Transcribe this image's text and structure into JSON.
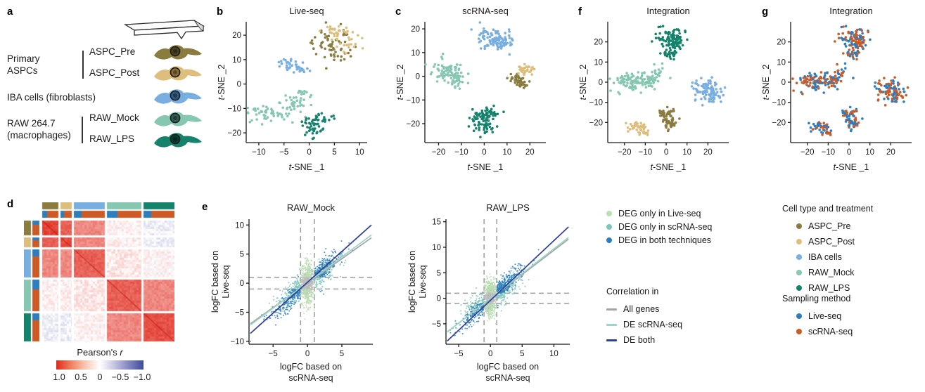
{
  "panels": {
    "a": "a",
    "b": "b",
    "c": "c",
    "d": "d",
    "e": "e",
    "f": "f",
    "g": "g"
  },
  "panel_a": {
    "groups": [
      {
        "line1": "Primary",
        "line2": "ASPCs"
      },
      {
        "line1": "IBA cells (fibroblasts)",
        "line2": ""
      },
      {
        "line1": "RAW 264.7",
        "line2": "(macrophages)"
      }
    ],
    "cells": [
      {
        "label": "ASPC_Pre",
        "body": "#8a7c3f",
        "nucleus": "#4a421f"
      },
      {
        "label": "ASPC_Post",
        "body": "#ddbe7d",
        "nucleus": "#8a6f35"
      },
      {
        "label": "IBA",
        "body": "#79afe0",
        "nucleus": "#2f5a86"
      },
      {
        "label": "RAW_Mock",
        "body": "#86c7b1",
        "nucleus": "#2f5f54"
      },
      {
        "label": "RAW_LPS",
        "body": "#15836c",
        "nucleus": "#0a3c33"
      }
    ],
    "probe_icon": "afm-cantilever-icon"
  },
  "legends": {
    "deg": {
      "items": [
        {
          "label": "DEG only in Live-seq",
          "color": "#b9dfb2"
        },
        {
          "label": "DEG only in scRNA-seq",
          "color": "#79c6bb"
        },
        {
          "label": "DEG in both techniques",
          "color": "#2e7ebd"
        }
      ]
    },
    "corr": {
      "title": "Correlation in",
      "items": [
        {
          "label": "All genes",
          "color": "#a5a5a5"
        },
        {
          "label": "DE scRNA-seq",
          "color": "#9ad5cb"
        },
        {
          "label": "DE both",
          "color": "#2e3f97"
        }
      ]
    },
    "cell": {
      "title": "Cell type and treatment",
      "items": [
        {
          "label": "ASPC_Pre",
          "color": "#8a7c3f"
        },
        {
          "label": "ASPC_Post",
          "color": "#ddbe7d"
        },
        {
          "label": "IBA cells",
          "color": "#79afe0"
        },
        {
          "label": "RAW_Mock",
          "color": "#86c7b1"
        },
        {
          "label": "RAW_LPS",
          "color": "#15836c"
        }
      ]
    },
    "sampling": {
      "title": "Sampling method",
      "items": [
        {
          "label": "Live-seq",
          "color": "#2e7ebd"
        },
        {
          "label": "scRNA-seq",
          "color": "#cc5a27"
        }
      ]
    }
  },
  "colorbar": {
    "title": "Pearson's",
    "title_italic": "r",
    "ticks": [
      "1.0",
      "0.5",
      "0",
      "−0.5",
      "−1.0"
    ]
  },
  "chart_data": [
    {
      "panel": "b",
      "type": "scatter",
      "variant": "tsne",
      "title": "Live-seq",
      "xlabel": "t-SNE _1",
      "ylabel": "t-SNE _2",
      "xlim": [
        -12.5,
        11.5
      ],
      "ylim": [
        -24,
        25.5
      ],
      "xticks": [
        -10,
        -5,
        0,
        5,
        10
      ],
      "yticks": [
        -20,
        -10,
        0,
        10,
        20
      ],
      "series": [
        {
          "name": "ASPC_Pre",
          "color": "#8a7c3f",
          "blobs": [
            [
              4,
              16.5,
              1.9,
              2.6,
              46
            ],
            [
              5.5,
              11.5,
              1.3,
              1.4,
              14
            ]
          ]
        },
        {
          "name": "ASPC_Post",
          "color": "#ddbe7d",
          "blobs": [
            [
              6,
              20.5,
              1.6,
              1.3,
              26
            ],
            [
              8,
              16.5,
              1.1,
              1.6,
              14
            ],
            [
              4.5,
              22.5,
              0.9,
              0.7,
              8
            ]
          ]
        },
        {
          "name": "IBA cells",
          "color": "#79afe0",
          "blobs": [
            [
              -4,
              8.2,
              1.6,
              1.0,
              26
            ],
            [
              -1.5,
              5.8,
              1.2,
              0.8,
              14
            ]
          ]
        },
        {
          "name": "RAW_Mock",
          "color": "#86c7b1",
          "blobs": [
            [
              -7,
              -12,
              2.6,
              1.9,
              56
            ],
            [
              -2.5,
              -7.5,
              1.6,
              1.9,
              30
            ],
            [
              -1,
              -4.5,
              0.8,
              0.8,
              8
            ]
          ]
        },
        {
          "name": "RAW_LPS",
          "color": "#15836c",
          "blobs": [
            [
              0.8,
              -16.5,
              1.2,
              2.1,
              36
            ],
            [
              2.8,
              -13.8,
              1.5,
              0.7,
              12
            ],
            [
              0.6,
              -19.8,
              1.1,
              0.7,
              10
            ]
          ]
        }
      ]
    },
    {
      "panel": "c",
      "type": "scatter",
      "variant": "tsne",
      "title": "scRNA-seq",
      "xlabel": "t-SNE _1",
      "ylabel": "t-SNE _2",
      "xlim": [
        -26,
        27
      ],
      "ylim": [
        -28,
        23
      ],
      "xticks": [
        -20,
        -10,
        0,
        10,
        20
      ],
      "yticks": [
        -20,
        -10,
        0,
        10,
        20
      ],
      "series": [
        {
          "name": "ASPC_Pre",
          "color": "#8a7c3f",
          "blobs": [
            [
              14.5,
              -1,
              1.8,
              1.2,
              26
            ],
            [
              16.5,
              -3.2,
              1.4,
              0.9,
              18
            ]
          ]
        },
        {
          "name": "ASPC_Post",
          "color": "#ddbe7d",
          "blobs": [
            [
              18,
              2.6,
              2.0,
              1.0,
              36
            ]
          ]
        },
        {
          "name": "IBA cells",
          "color": "#79afe0",
          "blobs": [
            [
              3,
              16.5,
              3.4,
              2.0,
              70
            ],
            [
              8.5,
              14,
              2.4,
              1.6,
              40
            ]
          ]
        },
        {
          "name": "RAW_Mock",
          "color": "#86c7b1",
          "blobs": [
            [
              -17,
              2.5,
              3.0,
              2.4,
              60
            ],
            [
              -13,
              -0.5,
              2.4,
              1.9,
              42
            ]
          ]
        },
        {
          "name": "RAW_LPS",
          "color": "#15836c",
          "blobs": [
            [
              -1,
              -18.5,
              3.0,
              2.4,
              60
            ],
            [
              2.8,
              -15.5,
              1.9,
              1.4,
              24
            ],
            [
              0.5,
              -22.5,
              2.0,
              1.4,
              20
            ]
          ]
        }
      ]
    },
    {
      "panel": "f",
      "type": "scatter",
      "variant": "tsne",
      "title": "Integration",
      "xlabel": "t-SNE _1",
      "ylabel": "t-SNE _2",
      "xlim": [
        -28,
        30
      ],
      "ylim": [
        -30,
        30
      ],
      "xticks": [
        -20,
        -10,
        0,
        10,
        20
      ],
      "yticks": [
        -20,
        -10,
        0,
        10,
        20
      ],
      "series": [
        {
          "name": "RAW_LPS",
          "color": "#15836c",
          "blobs": [
            [
              2,
              23,
              4.0,
              1.9,
              62
            ],
            [
              4,
              18.5,
              2.8,
              1.5,
              36
            ],
            [
              1,
              13.5,
              1.8,
              1.4,
              20
            ]
          ]
        },
        {
          "name": "RAW_Mock",
          "color": "#86c7b1",
          "blobs": [
            [
              -17,
              0.5,
              3.8,
              2.4,
              80
            ],
            [
              -8.5,
              1,
              2.8,
              2.0,
              52
            ],
            [
              -4,
              5.5,
              1.4,
              1.4,
              15
            ]
          ]
        },
        {
          "name": "IBA cells",
          "color": "#79afe0",
          "blobs": [
            [
              19,
              -4,
              3.4,
              3.0,
              72
            ],
            [
              23,
              -6.5,
              2.3,
              1.9,
              30
            ]
          ]
        },
        {
          "name": "ASPC_Pre",
          "color": "#8a7c3f",
          "blobs": [
            [
              0.5,
              -15.5,
              1.9,
              1.4,
              30
            ],
            [
              1.5,
              -20,
              1.9,
              1.9,
              36
            ]
          ]
        },
        {
          "name": "ASPC_Post",
          "color": "#ddbe7d",
          "blobs": [
            [
              -14,
              -22,
              2.4,
              1.2,
              30
            ],
            [
              -10.5,
              -24.5,
              1.4,
              0.9,
              13
            ]
          ]
        }
      ]
    },
    {
      "panel": "g",
      "type": "scatter",
      "variant": "tsne",
      "title": "Integration",
      "xlabel": "t-SNE _1",
      "ylabel": "t-SNE _2",
      "xlim": [
        -28,
        30
      ],
      "ylim": [
        -30,
        30
      ],
      "xticks": [
        -20,
        -10,
        0,
        10,
        20
      ],
      "yticks": [
        -20,
        -10,
        0,
        10,
        20
      ],
      "reuse_points_of": "f",
      "point_colors_by": "sampling",
      "sampling_series": [
        {
          "name": "Live-seq",
          "color": "#2e7ebd"
        },
        {
          "name": "scRNA-seq",
          "color": "#cc5a27"
        }
      ]
    },
    {
      "panel": "d",
      "type": "heatmap",
      "title": "Pearson's r",
      "groups": [
        "ASPC_Pre",
        "ASPC_Post",
        "IBA cells",
        "RAW_Mock",
        "RAW_LPS"
      ],
      "group_colors": [
        "#8a7c3f",
        "#ddbe7d",
        "#79afe0",
        "#86c7b1",
        "#15836c"
      ],
      "group_fractions": [
        0.13,
        0.09,
        0.25,
        0.28,
        0.25
      ],
      "sampling_colors": [
        "#2e7ebd",
        "#cc5a27"
      ],
      "live_fractions": [
        0.3,
        0.3,
        0.25,
        0.3,
        0.25
      ],
      "block_r": [
        [
          0.85,
          0.7,
          0.5,
          0.04,
          -0.06
        ],
        [
          0.7,
          0.8,
          0.5,
          0.04,
          -0.06
        ],
        [
          0.5,
          0.5,
          0.7,
          0.08,
          0.03
        ],
        [
          0.04,
          0.04,
          0.08,
          0.7,
          0.5
        ],
        [
          -0.06,
          -0.06,
          0.03,
          0.5,
          0.78
        ]
      ],
      "colorbar_range": [
        1.0,
        -1.0
      ]
    },
    {
      "panel": "e1",
      "type": "scatter",
      "variant": "logfc",
      "title": "RAW_Mock",
      "xlabel_lines": [
        "logFC based on",
        "scRNA-seq"
      ],
      "ylabel_lines": [
        "logFC based on",
        "Live-seq"
      ],
      "xlim": [
        -8.5,
        9.5
      ],
      "ylim": [
        -10.5,
        11
      ],
      "xticks": [
        -5,
        0,
        5
      ],
      "yticks": [
        -10,
        -5,
        0,
        5,
        10
      ],
      "guides": {
        "x": [
          -1,
          1
        ],
        "y": [
          -1,
          1
        ]
      },
      "pos_bias": 0.52,
      "categories": [
        {
          "name": "All genes (not DEG)",
          "color": "#bcbcbc",
          "kind": "bg",
          "n": 520
        },
        {
          "name": "DEG only in Live-seq",
          "color": "#b9dfb2",
          "kind": "liveonly",
          "n": 280
        },
        {
          "name": "DEG only in scRNA-seq",
          "color": "#79c6bb",
          "kind": "sconly",
          "n": 340
        },
        {
          "name": "DEG in both techniques",
          "color": "#2e7ebd",
          "kind": "both",
          "n": 430
        }
      ],
      "lines": [
        {
          "name": "All genes",
          "color": "#a5a5a5",
          "slope": 0.84,
          "intercept": 0
        },
        {
          "name": "DE scRNA-seq",
          "color": "#9ad5cb",
          "slope": 0.88,
          "intercept": 0.1
        },
        {
          "name": "DE both",
          "color": "#2e3f97",
          "slope": 1.06,
          "intercept": 0.15
        }
      ]
    },
    {
      "panel": "e2",
      "type": "scatter",
      "variant": "logfc",
      "title": "RAW_LPS",
      "xlabel_lines": [
        "logFC based on",
        "scRNA-seq"
      ],
      "ylabel_lines": [
        "logFC based on",
        "Live-seq"
      ],
      "xlim": [
        -7,
        12.5
      ],
      "ylim": [
        -9,
        15.5
      ],
      "xticks": [
        -5,
        0,
        5,
        10
      ],
      "yticks": [
        -5,
        0,
        5,
        10,
        15
      ],
      "guides": {
        "x": [
          -1,
          1
        ],
        "y": [
          -1,
          1
        ]
      },
      "pos_bias": 0.62,
      "categories": [
        {
          "name": "All genes (not DEG)",
          "color": "#bcbcbc",
          "kind": "bg",
          "n": 520
        },
        {
          "name": "DEG only in Live-seq",
          "color": "#b9dfb2",
          "kind": "liveonly",
          "n": 300
        },
        {
          "name": "DEG only in scRNA-seq",
          "color": "#79c6bb",
          "kind": "sconly",
          "n": 350
        },
        {
          "name": "DEG in both techniques",
          "color": "#2e7ebd",
          "kind": "both",
          "n": 450
        }
      ],
      "lines": [
        {
          "name": "All genes",
          "color": "#a5a5a5",
          "slope": 0.95,
          "intercept": -0.1
        },
        {
          "name": "DE scRNA-seq",
          "color": "#9ad5cb",
          "slope": 0.97,
          "intercept": 0
        },
        {
          "name": "DE both",
          "color": "#2e3f97",
          "slope": 1.17,
          "intercept": -0.4
        }
      ]
    }
  ]
}
